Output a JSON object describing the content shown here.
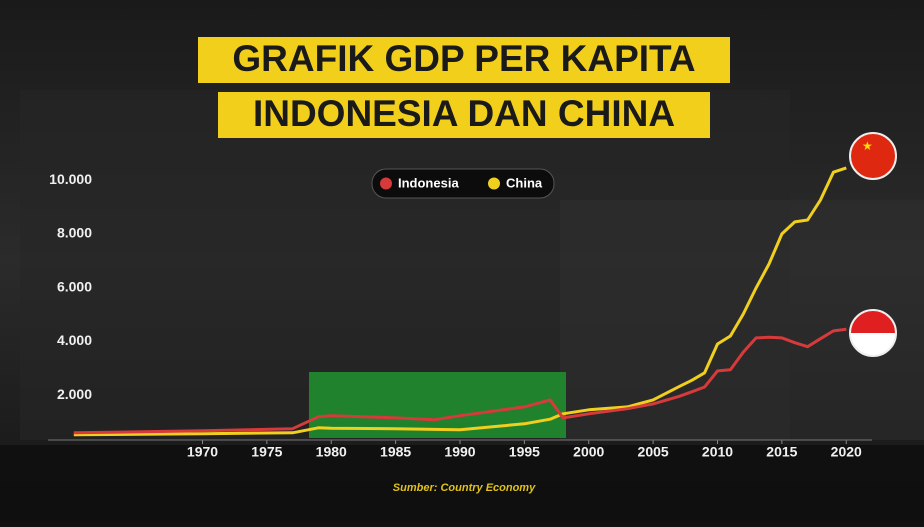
{
  "chart_data": {
    "type": "line",
    "title": "GRAFIK GDP PER KAPITA",
    "subtitle": "INDONESIA DAN CHINA",
    "source": "Sumber: Country Economy",
    "x": [
      1960,
      1970,
      1977,
      1979,
      1980,
      1985,
      1988,
      1990,
      1995,
      1997,
      1998,
      2000,
      2003,
      2005,
      2007,
      2008,
      2009,
      2010,
      2011,
      2012,
      2013,
      2014,
      2015,
      2016,
      2017,
      2018,
      2019,
      2020
    ],
    "series": [
      {
        "name": "Indonesia",
        "color": "#d63a3a",
        "values": [
          595,
          670,
          745,
          1190,
          1230,
          1150,
          1080,
          1230,
          1560,
          1820,
          1150,
          1300,
          1490,
          1670,
          1950,
          2120,
          2300,
          2900,
          2940,
          3600,
          4130,
          4150,
          4130,
          3950,
          3800,
          4100,
          4390,
          4450
        ]
      },
      {
        "name": "China",
        "color": "#f0cf1f",
        "values": [
          520,
          560,
          595,
          780,
          760,
          745,
          720,
          710,
          930,
          1100,
          1300,
          1450,
          1560,
          1820,
          2310,
          2550,
          2830,
          3900,
          4200,
          5020,
          5990,
          6880,
          8000,
          8450,
          8520,
          9270,
          10300,
          10460
        ]
      }
    ],
    "xlim": [
      1958,
      2022
    ],
    "xticks": [
      1970,
      1975,
      1980,
      1985,
      1990,
      1995,
      2000,
      2005,
      2010,
      2015,
      2020
    ],
    "ylim": [
      0,
      11000
    ],
    "yticks": [
      {
        "value": 2000,
        "label": "2.000"
      },
      {
        "value": 4000,
        "label": "4.000"
      },
      {
        "value": 6000,
        "label": "6.000"
      },
      {
        "value": 8000,
        "label": "8.000"
      },
      {
        "value": 10000,
        "label": "10.000"
      }
    ],
    "grid": false
  }
}
